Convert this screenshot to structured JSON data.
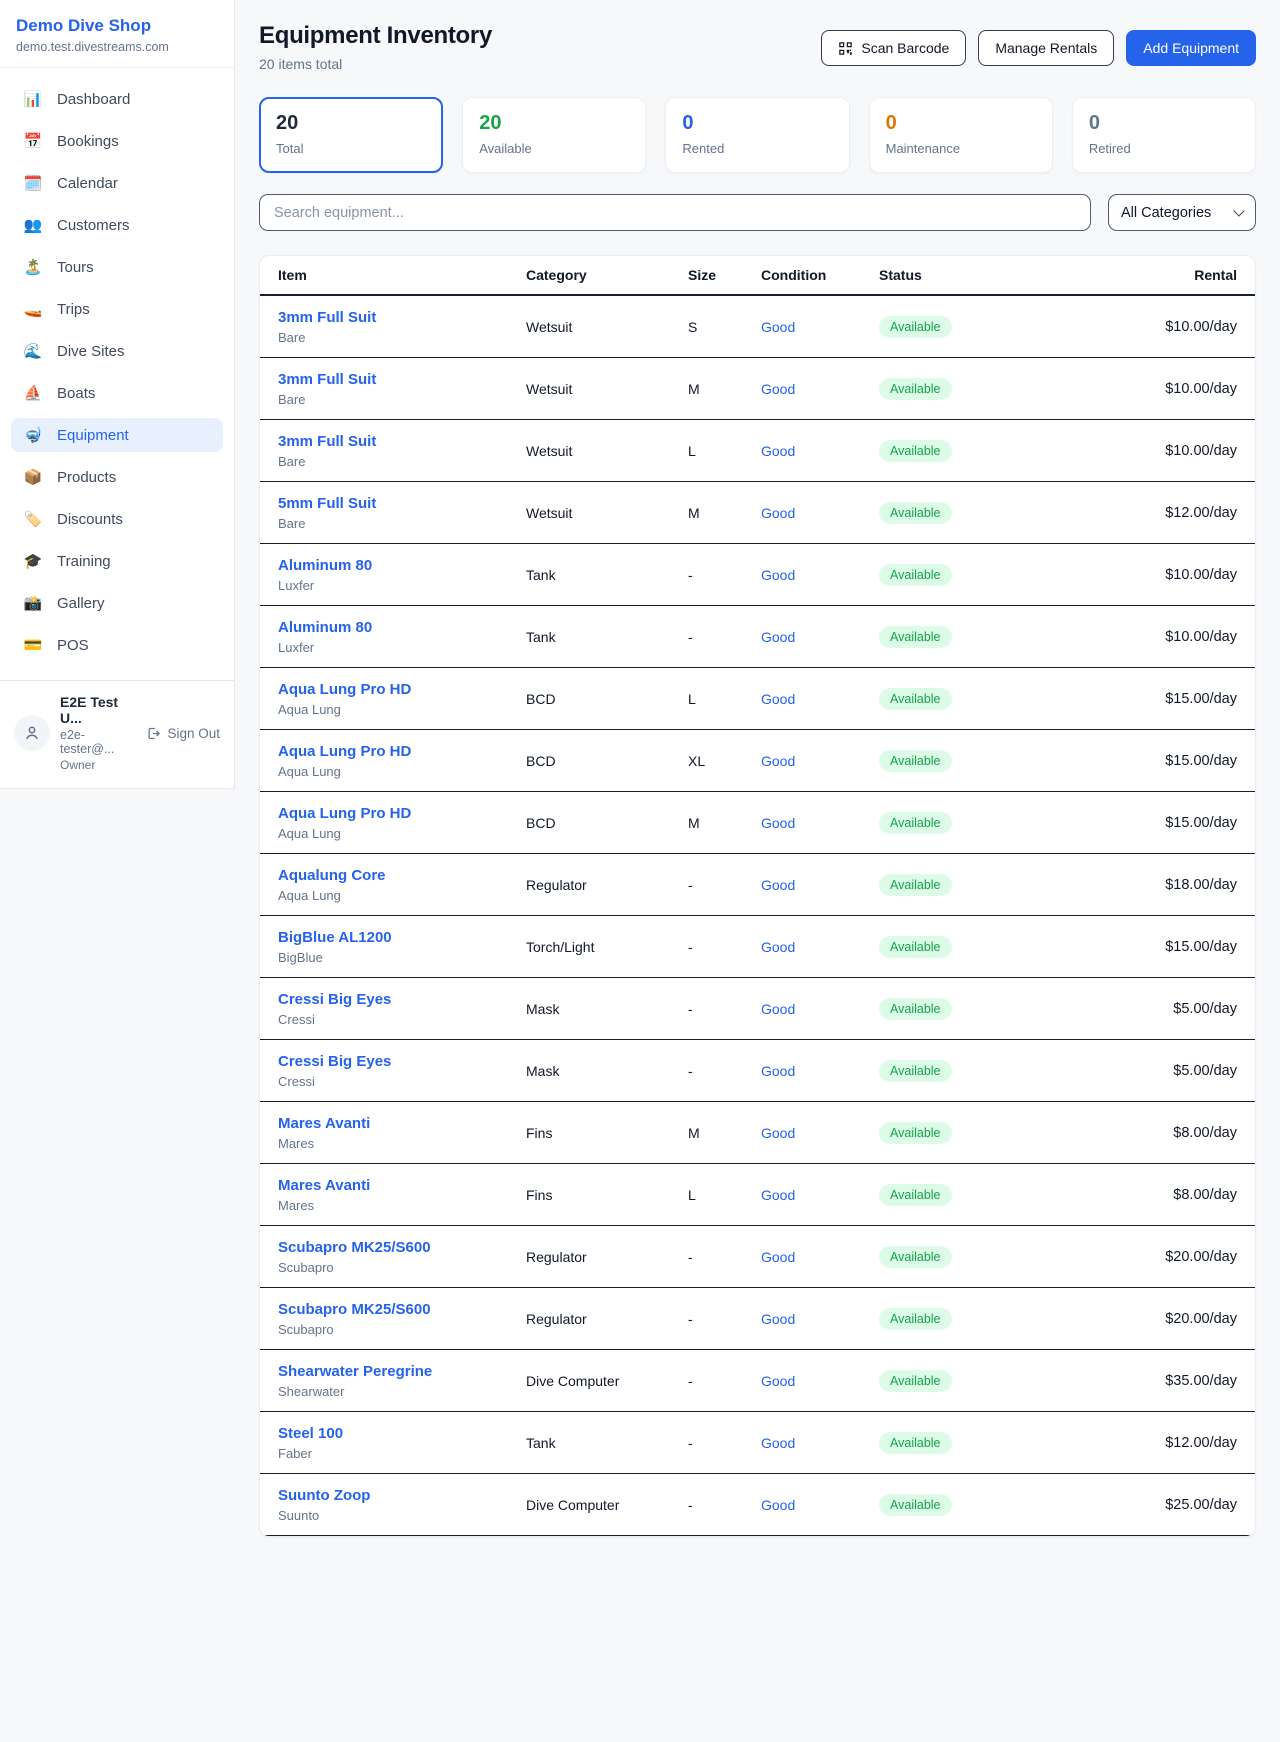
{
  "colors": {
    "accent": "#2563eb",
    "badge_bg": "#dcfce7",
    "badge_text": "#16a34a",
    "row_divider": "#16202e"
  },
  "sidebar": {
    "brand": {
      "name": "Demo Dive Shop",
      "domain": "demo.test.divestreams.com"
    },
    "nav": [
      {
        "icon": "📊",
        "label": "Dashboard",
        "active": false
      },
      {
        "icon": "📅",
        "label": "Bookings",
        "active": false
      },
      {
        "icon": "🗓️",
        "label": "Calendar",
        "active": false
      },
      {
        "icon": "👥",
        "label": "Customers",
        "active": false
      },
      {
        "icon": "🏝️",
        "label": "Tours",
        "active": false
      },
      {
        "icon": "🚤",
        "label": "Trips",
        "active": false
      },
      {
        "icon": "🌊",
        "label": "Dive Sites",
        "active": false
      },
      {
        "icon": "⛵",
        "label": "Boats",
        "active": false
      },
      {
        "icon": "🤿",
        "label": "Equipment",
        "active": true
      },
      {
        "icon": "📦",
        "label": "Products",
        "active": false
      },
      {
        "icon": "🏷️",
        "label": "Discounts",
        "active": false
      },
      {
        "icon": "🎓",
        "label": "Training",
        "active": false
      },
      {
        "icon": "📸",
        "label": "Gallery",
        "active": false
      },
      {
        "icon": "💳",
        "label": "POS",
        "active": false
      }
    ],
    "user": {
      "name": "E2E Test U...",
      "email": "e2e-tester@...",
      "role": "Owner",
      "sign_out": "Sign Out"
    }
  },
  "header": {
    "title": "Equipment Inventory",
    "subtitle": "20 items total",
    "scan_barcode": "Scan Barcode",
    "manage_rentals": "Manage Rentals",
    "add_equipment": "Add Equipment"
  },
  "stats": [
    {
      "value": "20",
      "label": "Total",
      "color": "#1e293b",
      "selected": true
    },
    {
      "value": "20",
      "label": "Available",
      "color": "#16a34a",
      "selected": false
    },
    {
      "value": "0",
      "label": "Rented",
      "color": "#2563eb",
      "selected": false
    },
    {
      "value": "0",
      "label": "Maintenance",
      "color": "#d97706",
      "selected": false
    },
    {
      "value": "0",
      "label": "Retired",
      "color": "#64748b",
      "selected": false
    }
  ],
  "filters": {
    "search_placeholder": "Search equipment...",
    "category_selected": "All Categories"
  },
  "table": {
    "columns": [
      "Item",
      "Category",
      "Size",
      "Condition",
      "Status",
      "Rental"
    ],
    "rows": [
      {
        "name": "3mm Full Suit",
        "brand": "Bare",
        "category": "Wetsuit",
        "size": "S",
        "condition": "Good",
        "status": "Available",
        "rental": "$10.00/day"
      },
      {
        "name": "3mm Full Suit",
        "brand": "Bare",
        "category": "Wetsuit",
        "size": "M",
        "condition": "Good",
        "status": "Available",
        "rental": "$10.00/day"
      },
      {
        "name": "3mm Full Suit",
        "brand": "Bare",
        "category": "Wetsuit",
        "size": "L",
        "condition": "Good",
        "status": "Available",
        "rental": "$10.00/day"
      },
      {
        "name": "5mm Full Suit",
        "brand": "Bare",
        "category": "Wetsuit",
        "size": "M",
        "condition": "Good",
        "status": "Available",
        "rental": "$12.00/day"
      },
      {
        "name": "Aluminum 80",
        "brand": "Luxfer",
        "category": "Tank",
        "size": "-",
        "condition": "Good",
        "status": "Available",
        "rental": "$10.00/day"
      },
      {
        "name": "Aluminum 80",
        "brand": "Luxfer",
        "category": "Tank",
        "size": "-",
        "condition": "Good",
        "status": "Available",
        "rental": "$10.00/day"
      },
      {
        "name": "Aqua Lung Pro HD",
        "brand": "Aqua Lung",
        "category": "BCD",
        "size": "L",
        "condition": "Good",
        "status": "Available",
        "rental": "$15.00/day"
      },
      {
        "name": "Aqua Lung Pro HD",
        "brand": "Aqua Lung",
        "category": "BCD",
        "size": "XL",
        "condition": "Good",
        "status": "Available",
        "rental": "$15.00/day"
      },
      {
        "name": "Aqua Lung Pro HD",
        "brand": "Aqua Lung",
        "category": "BCD",
        "size": "M",
        "condition": "Good",
        "status": "Available",
        "rental": "$15.00/day"
      },
      {
        "name": "Aqualung Core",
        "brand": "Aqua Lung",
        "category": "Regulator",
        "size": "-",
        "condition": "Good",
        "status": "Available",
        "rental": "$18.00/day"
      },
      {
        "name": "BigBlue AL1200",
        "brand": "BigBlue",
        "category": "Torch/Light",
        "size": "-",
        "condition": "Good",
        "status": "Available",
        "rental": "$15.00/day"
      },
      {
        "name": "Cressi Big Eyes",
        "brand": "Cressi",
        "category": "Mask",
        "size": "-",
        "condition": "Good",
        "status": "Available",
        "rental": "$5.00/day"
      },
      {
        "name": "Cressi Big Eyes",
        "brand": "Cressi",
        "category": "Mask",
        "size": "-",
        "condition": "Good",
        "status": "Available",
        "rental": "$5.00/day"
      },
      {
        "name": "Mares Avanti",
        "brand": "Mares",
        "category": "Fins",
        "size": "M",
        "condition": "Good",
        "status": "Available",
        "rental": "$8.00/day"
      },
      {
        "name": "Mares Avanti",
        "brand": "Mares",
        "category": "Fins",
        "size": "L",
        "condition": "Good",
        "status": "Available",
        "rental": "$8.00/day"
      },
      {
        "name": "Scubapro MK25/S600",
        "brand": "Scubapro",
        "category": "Regulator",
        "size": "-",
        "condition": "Good",
        "status": "Available",
        "rental": "$20.00/day"
      },
      {
        "name": "Scubapro MK25/S600",
        "brand": "Scubapro",
        "category": "Regulator",
        "size": "-",
        "condition": "Good",
        "status": "Available",
        "rental": "$20.00/day"
      },
      {
        "name": "Shearwater Peregrine",
        "brand": "Shearwater",
        "category": "Dive Computer",
        "size": "-",
        "condition": "Good",
        "status": "Available",
        "rental": "$35.00/day"
      },
      {
        "name": "Steel 100",
        "brand": "Faber",
        "category": "Tank",
        "size": "-",
        "condition": "Good",
        "status": "Available",
        "rental": "$12.00/day"
      },
      {
        "name": "Suunto Zoop",
        "brand": "Suunto",
        "category": "Dive Computer",
        "size": "-",
        "condition": "Good",
        "status": "Available",
        "rental": "$25.00/day"
      }
    ]
  }
}
